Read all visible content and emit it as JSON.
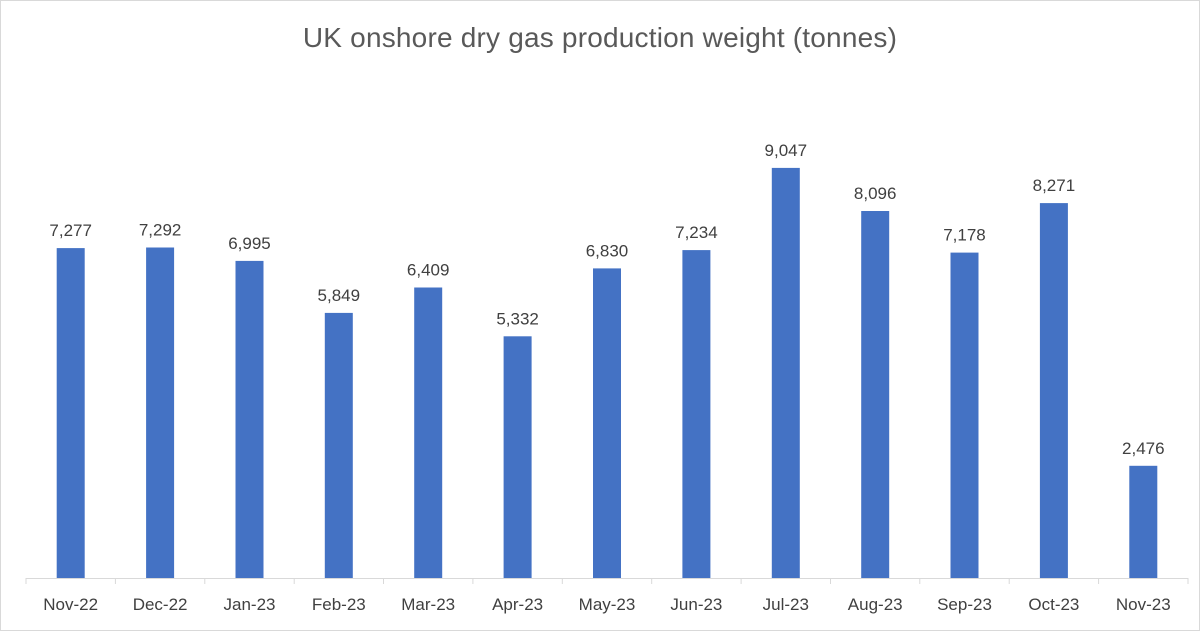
{
  "chart_data": {
    "type": "bar",
    "title": "UK onshore dry gas production weight (tonnes)",
    "categories": [
      "Nov-22",
      "Dec-22",
      "Jan-23",
      "Feb-23",
      "Mar-23",
      "Apr-23",
      "May-23",
      "Jun-23",
      "Jul-23",
      "Aug-23",
      "Sep-23",
      "Oct-23",
      "Nov-23"
    ],
    "values": [
      7277,
      7292,
      6995,
      5849,
      6409,
      5332,
      6830,
      7234,
      9047,
      8096,
      7178,
      8271,
      2476
    ],
    "data_labels": [
      "7,277",
      "7,292",
      "6,995",
      "5,849",
      "6,409",
      "5,332",
      "6,830",
      "7,234",
      "9,047",
      "8,096",
      "7,178",
      "8,271",
      "2,476"
    ],
    "xlabel": "",
    "ylabel": "",
    "ylim": [
      0,
      10000
    ],
    "grid": false,
    "legend": "none",
    "bar_color": "#4472c4",
    "axis_color": "#d9d9d9"
  }
}
